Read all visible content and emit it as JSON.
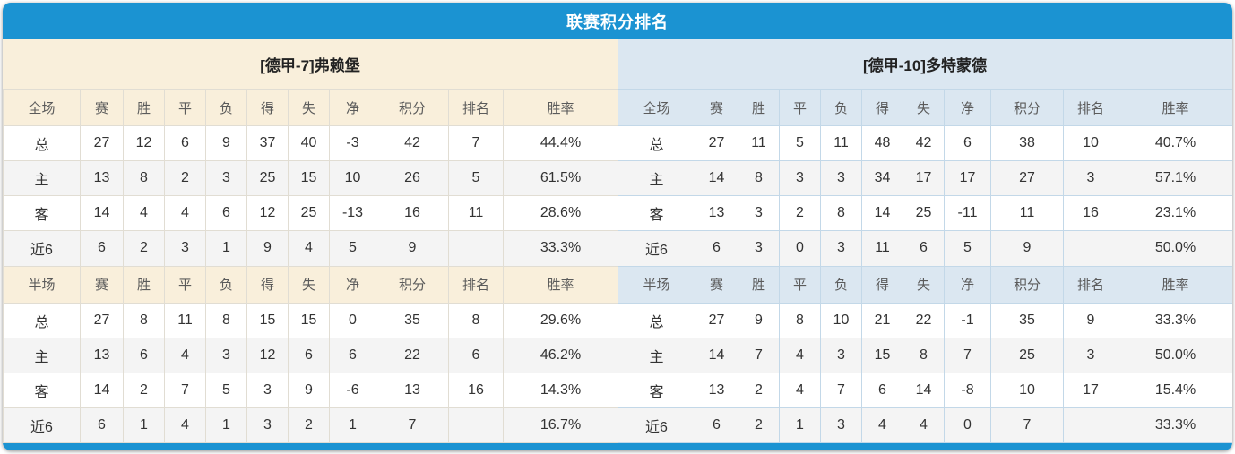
{
  "title": "联赛积分排名",
  "colors": {
    "accent_blue": "#1b93d2",
    "left_header_bg": "#f9efdb",
    "right_header_bg": "#dbe7f1",
    "points_and_rate_text": "#fb3a1c",
    "rank_text": "#2a7fd6",
    "home_label_text": "#e23b3b",
    "away_label_text": "#5f5fdd"
  },
  "tables": [
    {
      "team": "[德甲-7]弗赖堡",
      "theme": "cream",
      "sections": [
        {
          "scope_label": "全场",
          "columns": [
            "赛",
            "胜",
            "平",
            "负",
            "得",
            "失",
            "净",
            "积分",
            "排名",
            "胜率"
          ],
          "rows": [
            {
              "label": "总",
              "type": "total",
              "values": [
                "27",
                "12",
                "6",
                "9",
                "37",
                "40",
                "-3",
                "42",
                "7",
                "44.4%"
              ]
            },
            {
              "label": "主",
              "type": "home",
              "values": [
                "13",
                "8",
                "2",
                "3",
                "25",
                "15",
                "10",
                "26",
                "5",
                "61.5%"
              ]
            },
            {
              "label": "客",
              "type": "away",
              "values": [
                "14",
                "4",
                "4",
                "6",
                "12",
                "25",
                "-13",
                "16",
                "11",
                "28.6%"
              ]
            },
            {
              "label": "近6",
              "type": "recent",
              "values": [
                "6",
                "2",
                "3",
                "1",
                "9",
                "4",
                "5",
                "9",
                "",
                "33.3%"
              ]
            }
          ]
        },
        {
          "scope_label": "半场",
          "columns": [
            "赛",
            "胜",
            "平",
            "负",
            "得",
            "失",
            "净",
            "积分",
            "排名",
            "胜率"
          ],
          "rows": [
            {
              "label": "总",
              "type": "total",
              "values": [
                "27",
                "8",
                "11",
                "8",
                "15",
                "15",
                "0",
                "35",
                "8",
                "29.6%"
              ]
            },
            {
              "label": "主",
              "type": "home",
              "values": [
                "13",
                "6",
                "4",
                "3",
                "12",
                "6",
                "6",
                "22",
                "6",
                "46.2%"
              ]
            },
            {
              "label": "客",
              "type": "away",
              "values": [
                "14",
                "2",
                "7",
                "5",
                "3",
                "9",
                "-6",
                "13",
                "16",
                "14.3%"
              ]
            },
            {
              "label": "近6",
              "type": "recent",
              "values": [
                "6",
                "1",
                "4",
                "1",
                "3",
                "2",
                "1",
                "7",
                "",
                "16.7%"
              ]
            }
          ]
        }
      ]
    },
    {
      "team": "[德甲-10]多特蒙德",
      "theme": "blue",
      "sections": [
        {
          "scope_label": "全场",
          "columns": [
            "赛",
            "胜",
            "平",
            "负",
            "得",
            "失",
            "净",
            "积分",
            "排名",
            "胜率"
          ],
          "rows": [
            {
              "label": "总",
              "type": "total",
              "values": [
                "27",
                "11",
                "5",
                "11",
                "48",
                "42",
                "6",
                "38",
                "10",
                "40.7%"
              ]
            },
            {
              "label": "主",
              "type": "home",
              "values": [
                "14",
                "8",
                "3",
                "3",
                "34",
                "17",
                "17",
                "27",
                "3",
                "57.1%"
              ]
            },
            {
              "label": "客",
              "type": "away",
              "values": [
                "13",
                "3",
                "2",
                "8",
                "14",
                "25",
                "-11",
                "11",
                "16",
                "23.1%"
              ]
            },
            {
              "label": "近6",
              "type": "recent",
              "values": [
                "6",
                "3",
                "0",
                "3",
                "11",
                "6",
                "5",
                "9",
                "",
                "50.0%"
              ]
            }
          ]
        },
        {
          "scope_label": "半场",
          "columns": [
            "赛",
            "胜",
            "平",
            "负",
            "得",
            "失",
            "净",
            "积分",
            "排名",
            "胜率"
          ],
          "rows": [
            {
              "label": "总",
              "type": "total",
              "values": [
                "27",
                "9",
                "8",
                "10",
                "21",
                "22",
                "-1",
                "35",
                "9",
                "33.3%"
              ]
            },
            {
              "label": "主",
              "type": "home",
              "values": [
                "14",
                "7",
                "4",
                "3",
                "15",
                "8",
                "7",
                "25",
                "3",
                "50.0%"
              ]
            },
            {
              "label": "客",
              "type": "away",
              "values": [
                "13",
                "2",
                "4",
                "7",
                "6",
                "14",
                "-8",
                "10",
                "17",
                "15.4%"
              ]
            },
            {
              "label": "近6",
              "type": "recent",
              "values": [
                "6",
                "2",
                "1",
                "3",
                "4",
                "4",
                "0",
                "7",
                "",
                "33.3%"
              ]
            }
          ]
        }
      ]
    }
  ]
}
